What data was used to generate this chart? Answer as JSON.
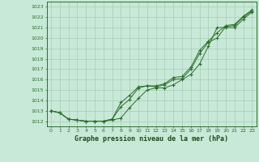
{
  "x": [
    0,
    1,
    2,
    3,
    4,
    5,
    6,
    7,
    8,
    9,
    10,
    11,
    12,
    13,
    14,
    15,
    16,
    17,
    18,
    19,
    20,
    21,
    22,
    23
  ],
  "line1": [
    1013.0,
    1012.8,
    1012.2,
    1012.1,
    1012.0,
    1012.0,
    1012.0,
    1012.1,
    1012.3,
    1013.3,
    1014.2,
    1015.0,
    1015.2,
    1015.2,
    1015.5,
    1016.0,
    1016.5,
    1017.5,
    1019.2,
    1021.0,
    1021.0,
    1021.0,
    1021.8,
    1022.5
  ],
  "line2": [
    1013.0,
    1012.8,
    1012.2,
    1012.1,
    1012.0,
    1012.0,
    1012.0,
    1012.2,
    1013.4,
    1014.1,
    1015.2,
    1015.4,
    1015.3,
    1015.5,
    1016.0,
    1016.1,
    1017.0,
    1018.5,
    1019.6,
    1020.0,
    1021.1,
    1021.2,
    1022.0,
    1022.6
  ],
  "line3": [
    1013.0,
    1012.8,
    1012.2,
    1012.1,
    1012.0,
    1012.0,
    1012.0,
    1012.2,
    1013.8,
    1014.5,
    1015.3,
    1015.4,
    1015.4,
    1015.6,
    1016.2,
    1016.3,
    1017.2,
    1018.8,
    1019.7,
    1020.5,
    1021.2,
    1021.3,
    1022.1,
    1022.7
  ],
  "ylim_min": 1011.5,
  "ylim_max": 1023.5,
  "yticks": [
    1012,
    1013,
    1014,
    1015,
    1016,
    1017,
    1018,
    1019,
    1020,
    1021,
    1022,
    1023
  ],
  "line_color": "#2d6e2d",
  "bg_color": "#c8e8d8",
  "grid_color": "#a8cdb8",
  "xlabel": "Graphe pression niveau de la mer (hPa)",
  "xlabel_color": "#1a4a1a",
  "marker": "+"
}
